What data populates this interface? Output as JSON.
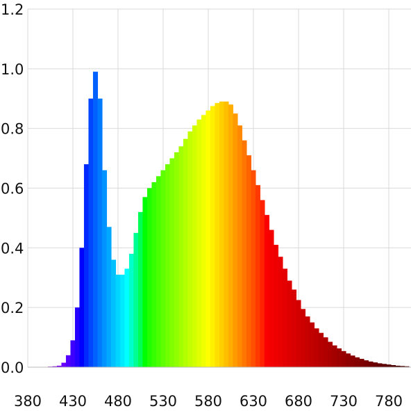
{
  "chart_data": {
    "type": "spectrum",
    "x": [
      380,
      385,
      390,
      395,
      400,
      405,
      410,
      415,
      420,
      425,
      430,
      435,
      440,
      445,
      450,
      455,
      460,
      465,
      470,
      475,
      480,
      485,
      490,
      495,
      500,
      505,
      510,
      515,
      520,
      525,
      530,
      535,
      540,
      545,
      550,
      555,
      560,
      565,
      570,
      575,
      580,
      585,
      590,
      595,
      600,
      605,
      610,
      615,
      620,
      625,
      630,
      635,
      640,
      645,
      650,
      655,
      660,
      665,
      670,
      675,
      680,
      685,
      690,
      695,
      700,
      705,
      710,
      715,
      720,
      725,
      730,
      735,
      740,
      745,
      750,
      755,
      760,
      765,
      770,
      775,
      780,
      785,
      790,
      795,
      800
    ],
    "values": [
      0,
      0,
      0,
      0,
      0.001,
      0.002,
      0.003,
      0.005,
      0.015,
      0.04,
      0.09,
      0.2,
      0.4,
      0.68,
      0.9,
      0.99,
      0.9,
      0.66,
      0.47,
      0.36,
      0.31,
      0.31,
      0.33,
      0.38,
      0.45,
      0.52,
      0.57,
      0.6,
      0.62,
      0.64,
      0.66,
      0.68,
      0.7,
      0.72,
      0.74,
      0.765,
      0.79,
      0.81,
      0.83,
      0.845,
      0.86,
      0.875,
      0.885,
      0.89,
      0.89,
      0.88,
      0.85,
      0.81,
      0.76,
      0.71,
      0.66,
      0.61,
      0.56,
      0.51,
      0.46,
      0.41,
      0.37,
      0.33,
      0.29,
      0.26,
      0.225,
      0.195,
      0.17,
      0.15,
      0.13,
      0.115,
      0.1,
      0.085,
      0.073,
      0.063,
      0.054,
      0.046,
      0.039,
      0.033,
      0.028,
      0.023,
      0.019,
      0.016,
      0.013,
      0.011,
      0.009,
      0.007,
      0.005,
      0.004,
      0.003
    ],
    "xlim": [
      380,
      800
    ],
    "xticks": [
      380,
      430,
      480,
      530,
      580,
      630,
      680,
      730,
      780
    ],
    "ylim": [
      0,
      1.2
    ],
    "yticks": [
      {
        "value": 0,
        "label": "0.0"
      },
      {
        "value": 0.2,
        "label": "0.2"
      },
      {
        "value": 0.4,
        "label": "0.4"
      },
      {
        "value": 0.6,
        "label": "0.6"
      },
      {
        "value": 0.8,
        "label": "0.8"
      },
      {
        "value": 1,
        "label": "1.0"
      },
      {
        "value": 1.2,
        "label": "1.2"
      }
    ],
    "grid": true
  }
}
